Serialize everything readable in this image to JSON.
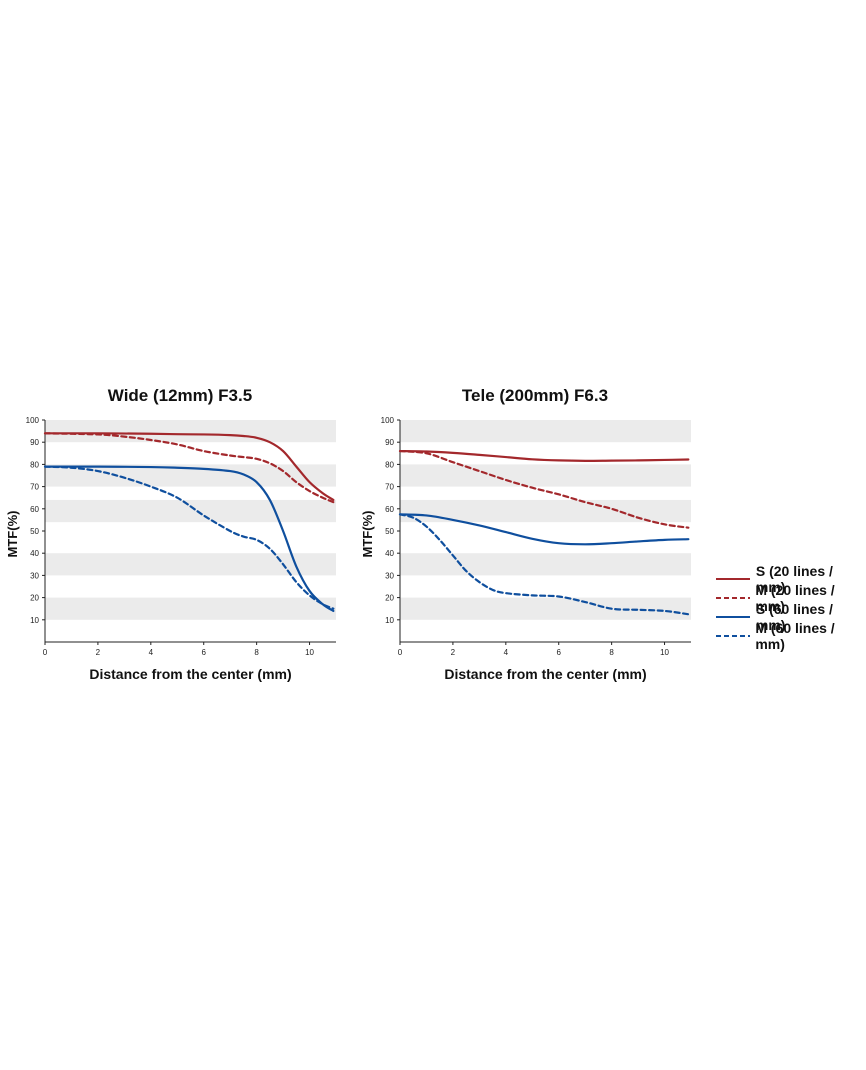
{
  "colors": {
    "red": "#a3282c",
    "blue": "#0f4f9e",
    "band": "#ebebeb",
    "axis": "#222222"
  },
  "chart_data": [
    {
      "type": "line",
      "title": "Wide (12mm) F3.5",
      "xlabel": "Distance from the center (mm)",
      "ylabel": "MTF(%)",
      "xlim": [
        0,
        11
      ],
      "ylim": [
        0,
        100
      ],
      "xticks": [
        0,
        2,
        4,
        6,
        8,
        10
      ],
      "yticks": [
        10,
        20,
        30,
        40,
        50,
        60,
        70,
        80,
        90,
        100
      ],
      "bands": [
        [
          90,
          100
        ],
        [
          70,
          80
        ],
        [
          54,
          64
        ],
        [
          30,
          40
        ],
        [
          10,
          20
        ]
      ],
      "series": [
        {
          "name": "S  (20 lines / mm)",
          "color": "red",
          "dash": false,
          "x": [
            0,
            2,
            4,
            5,
            6,
            7,
            7.5,
            8,
            8.5,
            9,
            9.5,
            10,
            10.5,
            10.9
          ],
          "y": [
            94,
            94,
            93.8,
            93.6,
            93.5,
            93.2,
            92.8,
            92,
            90,
            86,
            79,
            72,
            67,
            64
          ]
        },
        {
          "name": "M (20 lines / mm)",
          "color": "red",
          "dash": true,
          "x": [
            0,
            2,
            3,
            4,
            5,
            6,
            7,
            7.5,
            8,
            8.5,
            9,
            9.5,
            10,
            10.5,
            10.9
          ],
          "y": [
            94,
            93.5,
            92.5,
            91,
            89,
            86,
            84,
            83.3,
            82.5,
            80.5,
            77,
            72,
            68,
            65,
            63
          ]
        },
        {
          "name": "S  (60 lines / mm)",
          "color": "blue",
          "dash": false,
          "x": [
            0,
            2,
            4,
            5,
            6,
            7,
            7.5,
            8,
            8.5,
            9,
            9.5,
            10,
            10.5,
            10.9
          ],
          "y": [
            79,
            79,
            78.8,
            78.5,
            78,
            77,
            75.5,
            72,
            64,
            50,
            34,
            23,
            17,
            14
          ]
        },
        {
          "name": "M (60 lines / mm)",
          "color": "blue",
          "dash": true,
          "x": [
            0,
            1,
            2,
            3,
            4,
            5,
            6,
            7,
            7.5,
            8,
            8.5,
            9,
            9.5,
            10,
            10.5,
            10.9
          ],
          "y": [
            79,
            78.5,
            77,
            74,
            70,
            65,
            57,
            50,
            47.5,
            46,
            42,
            35,
            27,
            21,
            17,
            15
          ]
        }
      ]
    },
    {
      "type": "line",
      "title": "Tele (200mm) F6.3",
      "xlabel": "Distance from the center (mm)",
      "ylabel": "MTF(%)",
      "xlim": [
        0,
        11
      ],
      "ylim": [
        0,
        100
      ],
      "xticks": [
        0,
        2,
        4,
        6,
        8,
        10
      ],
      "yticks": [
        10,
        20,
        30,
        40,
        50,
        60,
        70,
        80,
        90,
        100
      ],
      "bands": [
        [
          90,
          100
        ],
        [
          70,
          80
        ],
        [
          54,
          64
        ],
        [
          30,
          40
        ],
        [
          10,
          20
        ]
      ],
      "series": [
        {
          "name": "S  (20 lines / mm)",
          "color": "red",
          "dash": false,
          "x": [
            0,
            1,
            2,
            3,
            4,
            5,
            6,
            7,
            8,
            9,
            10,
            10.9
          ],
          "y": [
            86,
            85.8,
            85.2,
            84.3,
            83.3,
            82.3,
            81.8,
            81.6,
            81.7,
            81.8,
            82,
            82.2
          ]
        },
        {
          "name": "M (20 lines / mm)",
          "color": "red",
          "dash": true,
          "x": [
            0,
            1,
            2,
            3,
            4,
            5,
            6,
            7,
            8,
            9,
            10,
            10.9
          ],
          "y": [
            86,
            85,
            81,
            77,
            73,
            69.5,
            66.5,
            63,
            60,
            56,
            53,
            51.5
          ]
        },
        {
          "name": "S  (60 lines / mm)",
          "color": "blue",
          "dash": false,
          "x": [
            0,
            1,
            2,
            3,
            4,
            5,
            6,
            7,
            8,
            9,
            10,
            10.9
          ],
          "y": [
            57.5,
            57,
            55,
            52.5,
            49.5,
            46.5,
            44.5,
            44,
            44.5,
            45.3,
            46,
            46.3
          ]
        },
        {
          "name": "M (60 lines / mm)",
          "color": "blue",
          "dash": true,
          "x": [
            0,
            0.5,
            1,
            1.5,
            2,
            2.5,
            3,
            3.5,
            4,
            5,
            6,
            7,
            8,
            9,
            10,
            10.9
          ],
          "y": [
            57.5,
            56,
            52,
            46,
            39,
            32,
            27,
            23.5,
            22,
            21,
            20.5,
            18,
            15,
            14.5,
            14,
            12.5
          ]
        }
      ]
    }
  ],
  "legend": [
    {
      "label": "S  (20 lines / mm)",
      "color": "red",
      "dash": false
    },
    {
      "label": "M (20 lines / mm)",
      "color": "red",
      "dash": true
    },
    {
      "label": "S  (60 lines / mm)",
      "color": "blue",
      "dash": false
    },
    {
      "label": "M (60 lines / mm)",
      "color": "blue",
      "dash": true
    }
  ]
}
